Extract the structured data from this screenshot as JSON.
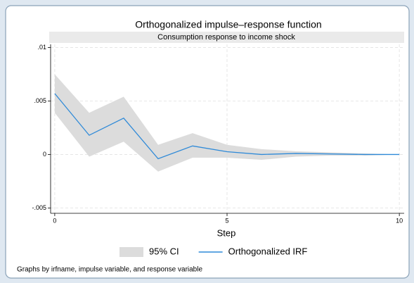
{
  "chart_data": {
    "type": "line",
    "title": "Orthogonalized impulse–response function",
    "subtitle": "Consumption response to income shock",
    "x_label": "Step",
    "note": "Graphs by irfname, impulse variable, and response variable",
    "x": [
      0,
      1,
      2,
      3,
      4,
      5,
      6,
      7,
      8,
      9,
      10
    ],
    "series": [
      {
        "name": "95% CI",
        "color": "#dcdcdc",
        "band": true,
        "lower": [
          0.0039,
          -0.0002,
          0.0012,
          -0.0016,
          -0.0003,
          -0.0003,
          -0.0005,
          -0.0002,
          -0.0001,
          -0.0001,
          0
        ],
        "upper": [
          0.0075,
          0.0039,
          0.0054,
          0.0009,
          0.002,
          0.0009,
          0.0005,
          0.0003,
          0.0002,
          0.0001,
          0
        ]
      },
      {
        "name": "Orthogonalized IRF",
        "color": "#2f8ad8",
        "values": [
          0.0057,
          0.0018,
          0.0034,
          -0.0004,
          0.0008,
          0.00026,
          0,
          0.0001,
          5e-05,
          0,
          0
        ]
      }
    ],
    "xlim": [
      -0.12,
      10.14
    ],
    "ylim": [
      -0.0055,
      0.0103
    ],
    "xticks": [
      0,
      5,
      10
    ],
    "yticks": [
      {
        "value": -0.005,
        "label": "-.005"
      },
      {
        "value": 0,
        "label": "0"
      },
      {
        "value": 0.005,
        "label": ".005"
      },
      {
        "value": 0.01,
        "label": ".01"
      }
    ],
    "grid": true,
    "legend": "bottom"
  }
}
